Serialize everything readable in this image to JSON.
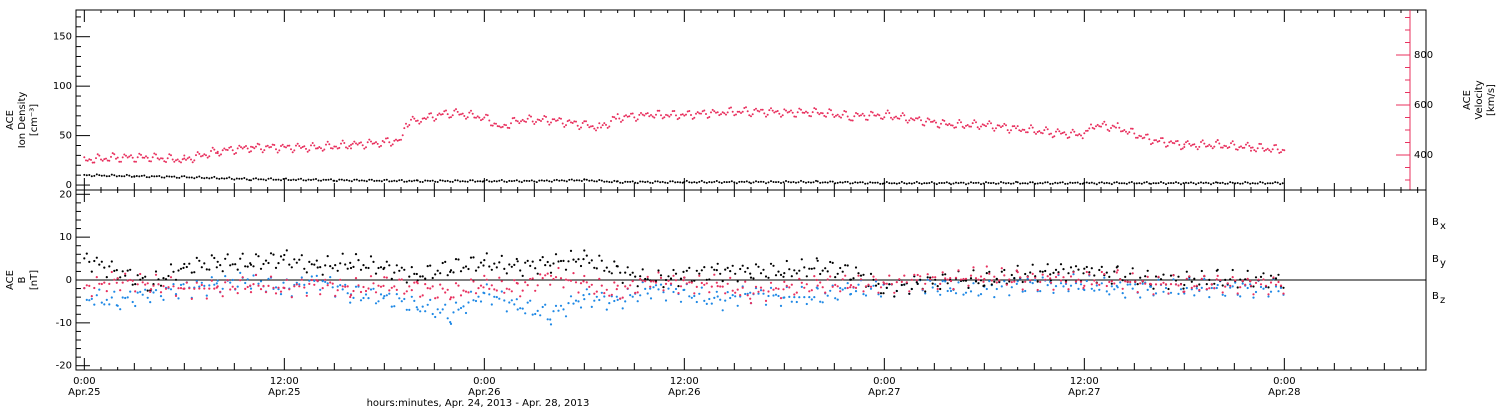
{
  "colors": {
    "axes": "#000000",
    "velocity": "#e8305e",
    "bx": "#000000",
    "by": "#1e88e5",
    "bz": "#e8305e"
  },
  "xaxis": {
    "label": "hours:minutes, Apr. 24, 2013 - Apr. 28, 2013",
    "range_hours": [
      -0.5,
      80.5
    ],
    "ticks": [
      {
        "hour": 0,
        "time": "0:00",
        "date": "Apr.25"
      },
      {
        "hour": 12,
        "time": "12:00",
        "date": "Apr.25"
      },
      {
        "hour": 24,
        "time": "0:00",
        "date": "Apr.26"
      },
      {
        "hour": 36,
        "time": "12:00",
        "date": "Apr.26"
      },
      {
        "hour": 48,
        "time": "0:00",
        "date": "Apr.27"
      },
      {
        "hour": 60,
        "time": "12:00",
        "date": "Apr.27"
      },
      {
        "hour": 72,
        "time": "0:00",
        "date": "Apr.28"
      }
    ]
  },
  "chart_data": [
    {
      "type": "scatter",
      "panel": "plasma",
      "ylabel_lines": [
        "ACE",
        "Ion Density",
        "[cm⁻³]"
      ],
      "ylim": [
        -5,
        177
      ],
      "yticks": [
        0,
        50,
        100,
        150
      ],
      "y2label_lines": [
        "ACE",
        "Velocity",
        "[km/s]"
      ],
      "y2lim": [
        260,
        980
      ],
      "y2ticks": [
        400,
        600,
        800
      ],
      "series": [
        {
          "axis": "left",
          "color": "#000000",
          "points": [
            [
              0,
              10
            ],
            [
              3,
              9
            ],
            [
              6,
              8
            ],
            [
              10,
              6
            ],
            [
              15,
              5
            ],
            [
              20,
              4
            ],
            [
              24,
              4
            ],
            [
              27,
              4
            ],
            [
              30,
              5
            ],
            [
              32,
              3
            ],
            [
              36,
              3
            ],
            [
              40,
              3
            ],
            [
              44,
              3
            ],
            [
              48,
              2
            ],
            [
              52,
              2
            ],
            [
              56,
              2
            ],
            [
              60,
              2
            ],
            [
              64,
              2
            ],
            [
              68,
              2
            ],
            [
              72,
              2
            ]
          ]
        },
        {
          "axis": "right",
          "color": "#e8305e",
          "points": [
            [
              0,
              380
            ],
            [
              2,
              390
            ],
            [
              4,
              390
            ],
            [
              6,
              380
            ],
            [
              8,
              415
            ],
            [
              10,
              430
            ],
            [
              14,
              430
            ],
            [
              16,
              440
            ],
            [
              18,
              450
            ],
            [
              19,
              460
            ],
            [
              19.3,
              530
            ],
            [
              20,
              540
            ],
            [
              22,
              570
            ],
            [
              24,
              550
            ],
            [
              25,
              510
            ],
            [
              26,
              540
            ],
            [
              28,
              540
            ],
            [
              30,
              520
            ],
            [
              31,
              510
            ],
            [
              32,
              550
            ],
            [
              34,
              560
            ],
            [
              36,
              560
            ],
            [
              38,
              570
            ],
            [
              40,
              575
            ],
            [
              42,
              570
            ],
            [
              44,
              570
            ],
            [
              46,
              555
            ],
            [
              48,
              560
            ],
            [
              50,
              540
            ],
            [
              52,
              520
            ],
            [
              54,
              520
            ],
            [
              56,
              505
            ],
            [
              58,
              490
            ],
            [
              60,
              480
            ],
            [
              60.5,
              520
            ],
            [
              62,
              510
            ],
            [
              64,
              460
            ],
            [
              66,
              440
            ],
            [
              68,
              440
            ],
            [
              70,
              430
            ],
            [
              72,
              420
            ]
          ]
        }
      ]
    },
    {
      "type": "scatter",
      "panel": "magnetic_field",
      "ylabel_lines": [
        "ACE",
        "B",
        "[nT]"
      ],
      "ylim": [
        -21,
        21
      ],
      "yticks": [
        -20,
        -10,
        0,
        10,
        20
      ],
      "zero_line": 0,
      "series": [
        {
          "name": "B",
          "sub": "x",
          "color": "#000000",
          "points": [
            [
              0,
              5
            ],
            [
              2,
              2
            ],
            [
              4,
              -1
            ],
            [
              6,
              3
            ],
            [
              8,
              4
            ],
            [
              10,
              4
            ],
            [
              12,
              5
            ],
            [
              14,
              3
            ],
            [
              16,
              4
            ],
            [
              18,
              3
            ],
            [
              20,
              1
            ],
            [
              22,
              3
            ],
            [
              24,
              4
            ],
            [
              26,
              3
            ],
            [
              28,
              4
            ],
            [
              30,
              5
            ],
            [
              32,
              2
            ],
            [
              34,
              0
            ],
            [
              36,
              1
            ],
            [
              38,
              2
            ],
            [
              40,
              2
            ],
            [
              42,
              2
            ],
            [
              44,
              3
            ],
            [
              46,
              2
            ],
            [
              48,
              -2
            ],
            [
              50,
              -1
            ],
            [
              52,
              0
            ],
            [
              54,
              0
            ],
            [
              56,
              1
            ],
            [
              58,
              2
            ],
            [
              60,
              2
            ],
            [
              62,
              1
            ],
            [
              64,
              0
            ],
            [
              66,
              0
            ],
            [
              68,
              0
            ],
            [
              70,
              0
            ],
            [
              72,
              0
            ]
          ]
        },
        {
          "name": "B",
          "sub": "y",
          "color": "#1e88e5",
          "points": [
            [
              0,
              -4
            ],
            [
              2,
              -5
            ],
            [
              4,
              -3
            ],
            [
              6,
              -2
            ],
            [
              8,
              -1
            ],
            [
              10,
              0
            ],
            [
              12,
              -2
            ],
            [
              14,
              0
            ],
            [
              16,
              -3
            ],
            [
              18,
              -4
            ],
            [
              20,
              -6
            ],
            [
              22,
              -8
            ],
            [
              24,
              -3
            ],
            [
              26,
              -6
            ],
            [
              28,
              -8
            ],
            [
              30,
              -4
            ],
            [
              32,
              -5
            ],
            [
              34,
              -2
            ],
            [
              36,
              -3
            ],
            [
              38,
              -5
            ],
            [
              40,
              -3
            ],
            [
              42,
              -4
            ],
            [
              44,
              -4
            ],
            [
              46,
              -2
            ],
            [
              48,
              -2
            ],
            [
              50,
              -1
            ],
            [
              52,
              -2
            ],
            [
              54,
              -2
            ],
            [
              56,
              -1
            ],
            [
              58,
              -1
            ],
            [
              60,
              -1
            ],
            [
              62,
              -2
            ],
            [
              64,
              -2
            ],
            [
              66,
              -2
            ],
            [
              68,
              -2
            ],
            [
              70,
              -2
            ],
            [
              72,
              -2
            ]
          ]
        },
        {
          "name": "B",
          "sub": "z",
          "color": "#e8305e",
          "points": [
            [
              0,
              -2
            ],
            [
              2,
              0
            ],
            [
              4,
              -1
            ],
            [
              6,
              -2
            ],
            [
              8,
              -2
            ],
            [
              10,
              -1
            ],
            [
              12,
              -2
            ],
            [
              14,
              -1
            ],
            [
              16,
              -2
            ],
            [
              18,
              -1
            ],
            [
              20,
              -2
            ],
            [
              22,
              -3
            ],
            [
              24,
              -1
            ],
            [
              26,
              -2
            ],
            [
              28,
              1
            ],
            [
              30,
              -1
            ],
            [
              32,
              -3
            ],
            [
              34,
              0
            ],
            [
              36,
              -1
            ],
            [
              38,
              -1
            ],
            [
              40,
              -3
            ],
            [
              42,
              -2
            ],
            [
              44,
              -1
            ],
            [
              46,
              -1
            ],
            [
              48,
              -1
            ],
            [
              50,
              0
            ],
            [
              52,
              0
            ],
            [
              54,
              1
            ],
            [
              56,
              0
            ],
            [
              58,
              0
            ],
            [
              60,
              0
            ],
            [
              62,
              0
            ],
            [
              64,
              -1
            ],
            [
              66,
              -1
            ],
            [
              68,
              -1
            ],
            [
              70,
              -1
            ],
            [
              72,
              -1
            ]
          ]
        }
      ]
    }
  ]
}
